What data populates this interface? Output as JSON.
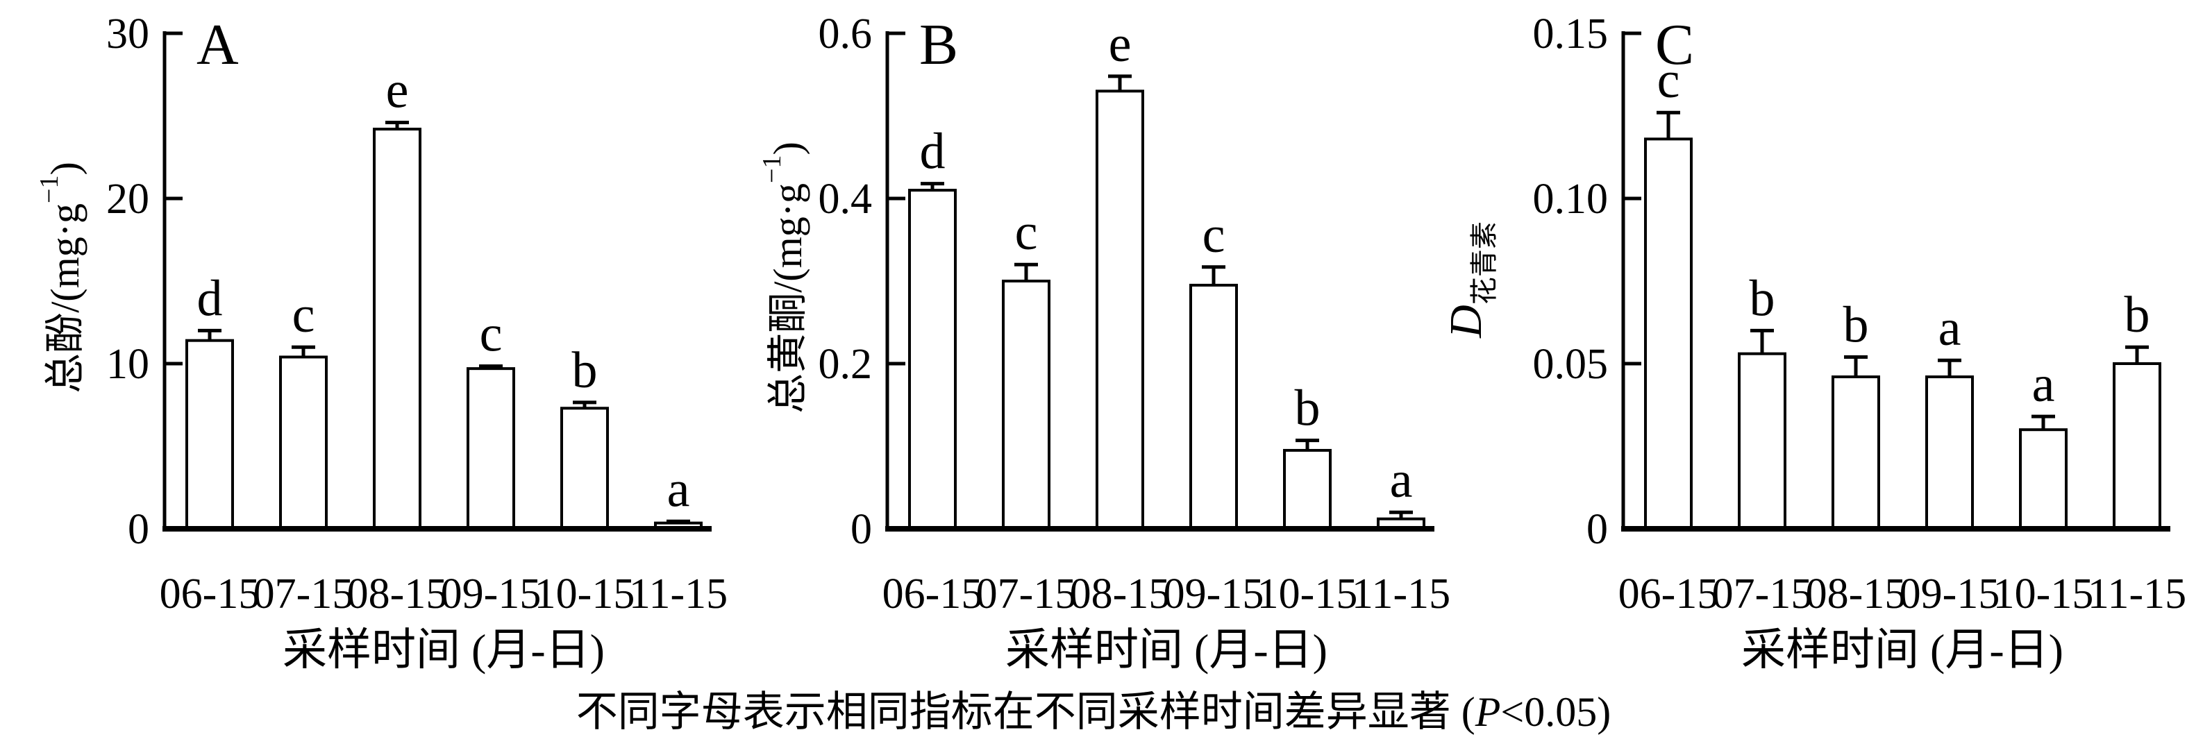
{
  "figure": {
    "caption": {
      "pre": "不同字母表示相同指标在不同采样时间差异显著 (",
      "p": "P",
      "post": "<0.05)"
    },
    "colors": {
      "ink": "#000000",
      "background": "#ffffff",
      "bar_fill": "#ffffff"
    }
  },
  "chart_data": [
    {
      "type": "bar",
      "panel_label": "A",
      "ylabel_plain": "总酚/(mg·g−1)",
      "ylabel_parts": [
        {
          "t": "总酚/(mg·g",
          "s": "base"
        },
        {
          "t": "−1",
          "s": "sup"
        },
        {
          "t": ")",
          "s": "base"
        }
      ],
      "xlabel": "采样时间 (月-日)",
      "categories": [
        "06-15",
        "07-15",
        "08-15",
        "09-15",
        "10-15",
        "11-15"
      ],
      "values": [
        11.4,
        10.4,
        24.2,
        9.7,
        7.3,
        0.35
      ],
      "errors": [
        0.6,
        0.6,
        0.4,
        0.15,
        0.35,
        0.1
      ],
      "significance_letters": [
        "d",
        "c",
        "e",
        "c",
        "b",
        "a"
      ],
      "ylim": [
        0,
        30
      ],
      "yticks": [
        {
          "v": 0,
          "label": "0"
        },
        {
          "v": 10,
          "label": "10"
        },
        {
          "v": 20,
          "label": "20"
        },
        {
          "v": 30,
          "label": "30"
        }
      ],
      "grid": false,
      "legend": "none"
    },
    {
      "type": "bar",
      "panel_label": "B",
      "ylabel_plain": "总黄酮/(mg·g−1)",
      "ylabel_parts": [
        {
          "t": "总黄酮/(mg·g",
          "s": "base"
        },
        {
          "t": "−1",
          "s": "sup"
        },
        {
          "t": ")",
          "s": "base"
        }
      ],
      "xlabel": "采样时间 (月-日)",
      "categories": [
        "06-15",
        "07-15",
        "08-15",
        "09-15",
        "10-15",
        "11-15"
      ],
      "values": [
        0.41,
        0.3,
        0.53,
        0.295,
        0.095,
        0.012
      ],
      "errors": [
        0.008,
        0.02,
        0.018,
        0.022,
        0.012,
        0.008
      ],
      "significance_letters": [
        "d",
        "c",
        "e",
        "c",
        "b",
        "a"
      ],
      "ylim": [
        0,
        0.6
      ],
      "yticks": [
        {
          "v": 0,
          "label": "0"
        },
        {
          "v": 0.2,
          "label": "0.2"
        },
        {
          "v": 0.4,
          "label": "0.4"
        },
        {
          "v": 0.6,
          "label": "0.6"
        }
      ],
      "grid": false,
      "legend": "none"
    },
    {
      "type": "bar",
      "panel_label": "C",
      "ylabel_plain": "D花青素",
      "ylabel_parts": [
        {
          "t": "D",
          "s": "big-it"
        },
        {
          "t": "花青素",
          "s": "sub"
        }
      ],
      "xlabel": "采样时间 (月-日)",
      "categories": [
        "06-15",
        "07-15",
        "08-15",
        "09-15",
        "10-15",
        "11-15"
      ],
      "values": [
        0.118,
        0.053,
        0.046,
        0.046,
        0.03,
        0.05
      ],
      "errors": [
        0.008,
        0.007,
        0.006,
        0.005,
        0.004,
        0.005
      ],
      "significance_letters": [
        "c",
        "b",
        "b",
        "a",
        "a",
        "b"
      ],
      "ylim": [
        0,
        0.15
      ],
      "yticks": [
        {
          "v": 0,
          "label": "0"
        },
        {
          "v": 0.05,
          "label": "0.05"
        },
        {
          "v": 0.1,
          "label": "0.10"
        },
        {
          "v": 0.15,
          "label": "0.15"
        }
      ],
      "grid": false,
      "legend": "none"
    }
  ]
}
